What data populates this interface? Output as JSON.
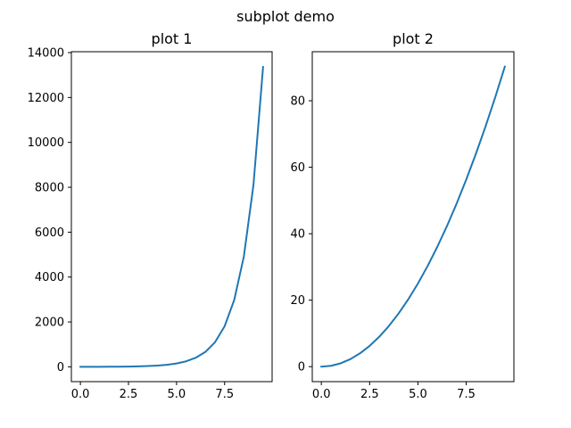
{
  "figure": {
    "suptitle": "subplot demo"
  },
  "chart_data": [
    {
      "type": "line",
      "title": "plot 1",
      "xlabel": "",
      "ylabel": "",
      "xlim": [
        -0.47,
        9.97
      ],
      "ylim": [
        -660,
        14040
      ],
      "xticks": [
        0,
        2.5,
        5,
        7.5
      ],
      "xtick_labels": [
        "0.0",
        "2.5",
        "5.0",
        "7.5"
      ],
      "yticks": [
        0,
        2000,
        4000,
        6000,
        8000,
        10000,
        12000,
        14000
      ],
      "ytick_labels": [
        "0",
        "2000",
        "4000",
        "6000",
        "8000",
        "10000",
        "12000",
        "14000"
      ],
      "grid": false,
      "series": [
        {
          "color": "#1f77b4",
          "x": [
            0,
            0.5,
            1,
            1.5,
            2,
            2.5,
            3,
            3.5,
            4,
            4.5,
            5,
            5.5,
            6,
            6.5,
            7,
            7.5,
            8,
            8.5,
            9,
            9.5
          ],
          "y": [
            1,
            1.6,
            2.7,
            4.5,
            7.4,
            12.2,
            20.1,
            33.1,
            54.6,
            90.0,
            148.4,
            244.7,
            403.4,
            665.1,
            1096.6,
            1808.0,
            2981.0,
            4914.8,
            8103.1,
            13359.7
          ]
        }
      ]
    },
    {
      "type": "line",
      "title": "plot 2",
      "xlabel": "",
      "ylabel": "",
      "xlim": [
        -0.47,
        9.97
      ],
      "ylim": [
        -4.51,
        94.76
      ],
      "xticks": [
        0,
        2.5,
        5,
        7.5
      ],
      "xtick_labels": [
        "0.0",
        "2.5",
        "5.0",
        "7.5"
      ],
      "yticks": [
        0,
        20,
        40,
        60,
        80
      ],
      "ytick_labels": [
        "0",
        "20",
        "40",
        "60",
        "80"
      ],
      "grid": false,
      "series": [
        {
          "color": "#1f77b4",
          "x": [
            0,
            0.5,
            1,
            1.5,
            2,
            2.5,
            3,
            3.5,
            4,
            4.5,
            5,
            5.5,
            6,
            6.5,
            7,
            7.5,
            8,
            8.5,
            9,
            9.5
          ],
          "y": [
            0,
            0.25,
            1,
            2.25,
            4,
            6.25,
            9,
            12.25,
            16,
            20.25,
            25,
            30.25,
            36,
            42.25,
            49,
            56.25,
            64,
            72.25,
            81,
            90.25
          ]
        }
      ]
    }
  ]
}
